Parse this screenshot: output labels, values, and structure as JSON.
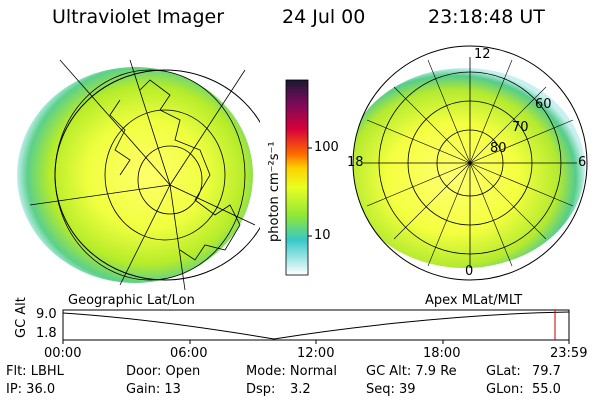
{
  "header": {
    "title": "Ultraviolet Imager",
    "date": "24 Jul 00",
    "time": "23:18:48 UT"
  },
  "colorbar": {
    "label": "photon cm⁻²s⁻¹",
    "ticks": [
      "100",
      "10"
    ],
    "scale": "log",
    "colors": [
      "#1a1a33",
      "#7a0a5a",
      "#d6003a",
      "#ff6a00",
      "#ffd000",
      "#e8ff20",
      "#8de63a",
      "#36c8c8",
      "#ffffff"
    ]
  },
  "left_map": {
    "caption": "Geographic Lat/Lon"
  },
  "right_map": {
    "caption": "Apex MLat/MLT",
    "mlt_labels": {
      "top": "12",
      "left": "18",
      "right": "6",
      "bottom": "0"
    },
    "lat_labels": [
      "60",
      "70",
      "80"
    ]
  },
  "timeline": {
    "ylabel": "GC Alt",
    "yticks": [
      "9.0",
      "1.8"
    ],
    "xticks": [
      "00:00",
      "06:00",
      "12:00",
      "18:00",
      "23:59"
    ]
  },
  "info": {
    "row1": {
      "flt": "Flt: LBHL",
      "door": "Door: Open",
      "mode": "Mode: Normal",
      "gcalt": "GC Alt: 7.9 Re",
      "glat_label": "GLat:",
      "glat_value": "79.7"
    },
    "row2": {
      "ip": "IP: 36.0",
      "gain": "Gain: 13",
      "dsp_label": "Dsp:",
      "dsp_value": "3.2",
      "seq": "Seq: 39",
      "glon_label": "GLon:",
      "glon_value": "55.0"
    }
  }
}
